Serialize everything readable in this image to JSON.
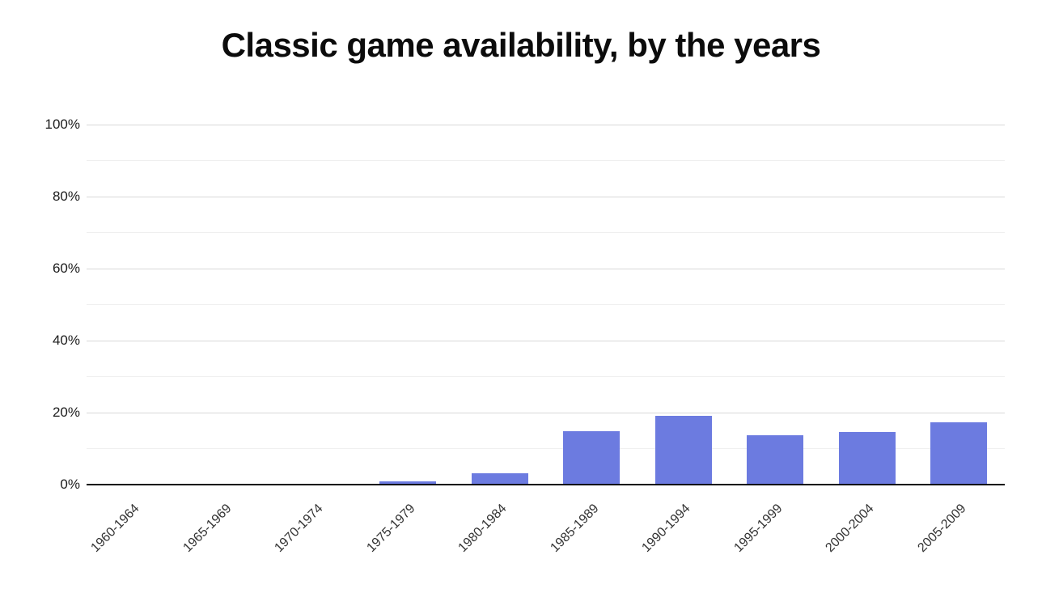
{
  "page": {
    "background": "#ffffff"
  },
  "chart_data": {
    "type": "bar",
    "title": "Classic game availability, by the years",
    "categories": [
      "1960-1964",
      "1965-1969",
      "1970-1974",
      "1975-1979",
      "1980-1984",
      "1985-1989",
      "1990-1994",
      "1995-1999",
      "2000-2004",
      "2005-2009"
    ],
    "values": [
      0,
      0,
      0,
      0.8,
      3.2,
      14.9,
      19,
      13.8,
      14.5,
      17.4
    ],
    "xlabel": "",
    "ylabel": "",
    "ylim": [
      0,
      100
    ],
    "y_major_ticks": [
      0,
      20,
      40,
      60,
      80,
      100
    ],
    "y_minor_ticks": [
      10,
      30,
      50,
      70,
      90
    ],
    "y_tick_suffix": "%",
    "grid": true,
    "legend_position": "none",
    "x_tick_rotation_deg": -45,
    "bar_color": "#6c7be0",
    "axis_line_color": "#0a0a0a",
    "major_grid_color": "#d8d8d8",
    "minor_grid_color": "#efefef",
    "title_color": "#0c0c0c",
    "y_tick_label_color": "#1c1c1c",
    "x_tick_label_color": "#333333"
  }
}
